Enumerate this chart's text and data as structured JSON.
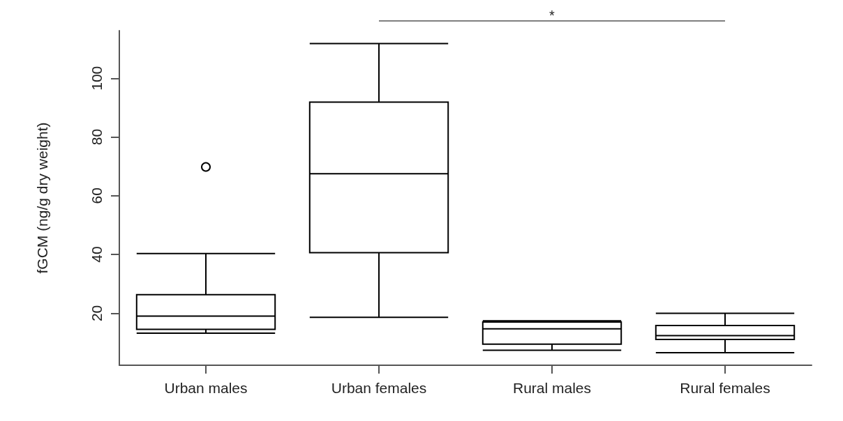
{
  "chart_data": {
    "type": "box",
    "ylabel": "fGCM (ng/g dry weight)",
    "categories": [
      "Urban males",
      "Urban females",
      "Rural males",
      "Rural females"
    ],
    "boxes": [
      {
        "low": 13.2,
        "q1": 14.5,
        "median": 19.0,
        "q3": 26.3,
        "high": 40.3,
        "outliers": [
          69.8
        ]
      },
      {
        "low": 18.6,
        "q1": 40.6,
        "median": 67.5,
        "q3": 91.9,
        "high": 111.8
      },
      {
        "low": 7.4,
        "q1": 9.5,
        "median": 14.7,
        "q3": 17.0,
        "high": 17.4
      },
      {
        "low": 6.6,
        "q1": 11.1,
        "median": 12.4,
        "q3": 15.8,
        "high": 20.0
      }
    ],
    "ylim": [
      2.3,
      116.2
    ],
    "yticks": [
      20,
      40,
      60,
      80,
      100
    ],
    "annotations": [
      "*"
    ],
    "grid": false
  }
}
